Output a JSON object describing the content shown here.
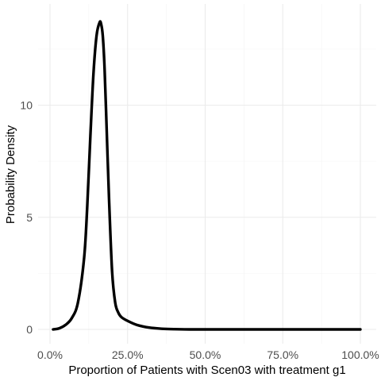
{
  "chart_data": {
    "type": "line",
    "title": "",
    "xlabel": "Proportion of Patients with Scen03 with treatment g1",
    "ylabel": "Probability Density",
    "xlim": [
      0,
      1
    ],
    "ylim": [
      0,
      13.7
    ],
    "x_ticks": [
      0,
      0.25,
      0.5,
      0.75,
      1.0
    ],
    "x_tick_labels": [
      "0.0%",
      "25.0%",
      "50.0%",
      "75.0%",
      "100.0%"
    ],
    "y_ticks": [
      0,
      5,
      10
    ],
    "y_tick_labels": [
      "0",
      "5",
      "10"
    ],
    "grid": true,
    "legend": "none",
    "line_color": "#000000",
    "series": [
      {
        "x": [
          0.01,
          0.03,
          0.05,
          0.07,
          0.09,
          0.11,
          0.12,
          0.13,
          0.14,
          0.15,
          0.16,
          0.165,
          0.17,
          0.175,
          0.18,
          0.19,
          0.2,
          0.21,
          0.22,
          0.23,
          0.25,
          0.28,
          0.32,
          0.36,
          0.4,
          0.45,
          0.5,
          0.6,
          0.7,
          0.8,
          0.9,
          1.0
        ],
        "y": [
          0.0,
          0.05,
          0.2,
          0.5,
          1.2,
          3.2,
          5.5,
          8.6,
          11.4,
          13.1,
          13.7,
          13.6,
          13.1,
          11.9,
          10.0,
          5.9,
          2.6,
          1.2,
          0.75,
          0.55,
          0.38,
          0.2,
          0.08,
          0.03,
          0.01,
          0.0,
          0.0,
          0.0,
          0.0,
          0.0,
          0.0,
          0.0
        ]
      }
    ]
  }
}
